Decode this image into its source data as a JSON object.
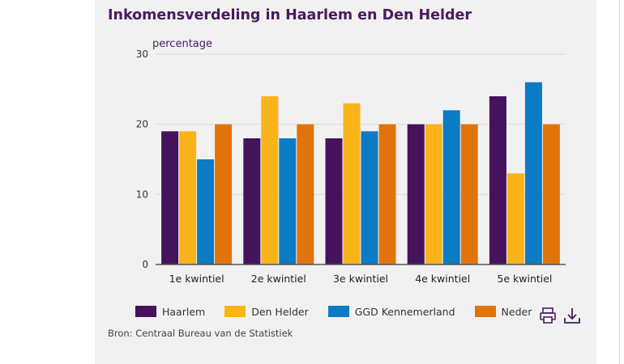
{
  "title": "Inkomensverdeling in Haarlem en Den Helder",
  "source": "Bron: Centraal Bureau van de Statistiek",
  "colors": {
    "haarlem": "#45135c",
    "den_helder": "#fbb31a",
    "ggd": "#0b7bc4",
    "nederland": "#e2730a"
  },
  "icons": {
    "print": "print-icon",
    "download": "download-icon"
  },
  "chart_data": {
    "type": "bar",
    "ylabel": "percentage",
    "ylim": [
      0,
      30
    ],
    "yticks": [
      0,
      10,
      20,
      30
    ],
    "grid": true,
    "legend": "bottom",
    "categories": [
      "1e kwintiel",
      "2e kwintiel",
      "3e kwintiel",
      "4e kwintiel",
      "5e kwintiel"
    ],
    "series": [
      {
        "name": "Haarlem",
        "color": "#45135c",
        "values": [
          19,
          18,
          18,
          20,
          24
        ]
      },
      {
        "name": "Den Helder",
        "color": "#fbb31a",
        "values": [
          19,
          24,
          23,
          20,
          13
        ]
      },
      {
        "name": "GGD Kennemerland",
        "color": "#0b7bc4",
        "values": [
          15,
          18,
          19,
          22,
          26
        ]
      },
      {
        "name": "Nederland",
        "color": "#e2730a",
        "values": [
          20,
          20,
          20,
          20,
          20
        ]
      }
    ]
  }
}
